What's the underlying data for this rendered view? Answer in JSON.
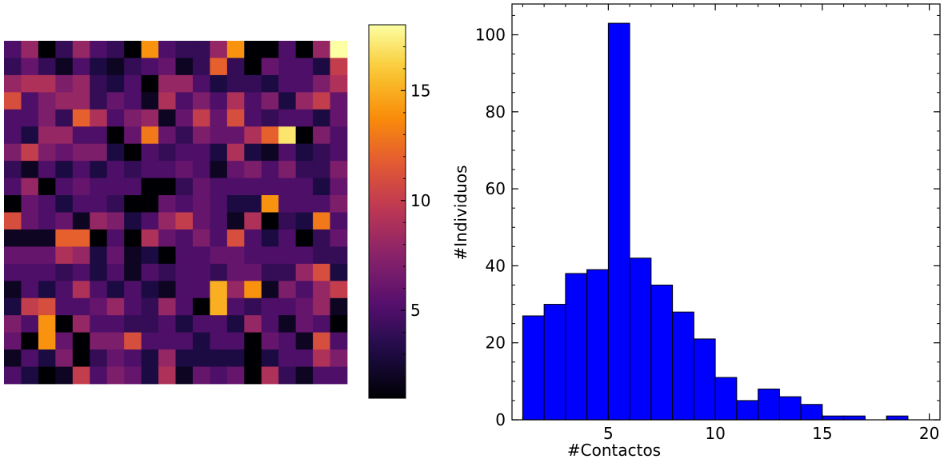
{
  "chart_data": [
    {
      "type": "heatmap",
      "rows": 20,
      "cols": 20,
      "colormap": "inferno",
      "vmin": 1,
      "vmax": 18,
      "colorbar_ticks": [
        5,
        10,
        15
      ],
      "values": [
        [
          5,
          8,
          1,
          4,
          8,
          5,
          4,
          1,
          14,
          5,
          4,
          4,
          8,
          14,
          1,
          1,
          5,
          1,
          8,
          18
        ],
        [
          4,
          6,
          4,
          2,
          5,
          3,
          2,
          4,
          5,
          6,
          2,
          4,
          12,
          4,
          1,
          6,
          5,
          5,
          3,
          10
        ],
        [
          8,
          9,
          9,
          7,
          8,
          4,
          3,
          5,
          1,
          8,
          8,
          5,
          3,
          4,
          4,
          3,
          5,
          5,
          7,
          9
        ],
        [
          11,
          5,
          7,
          8,
          8,
          4,
          6,
          5,
          2,
          9,
          5,
          7,
          5,
          9,
          5,
          7,
          3,
          8,
          10,
          6
        ],
        [
          5,
          5,
          7,
          4,
          12,
          9,
          5,
          7,
          8,
          2,
          6,
          10,
          6,
          11,
          5,
          4,
          5,
          5,
          3,
          6
        ],
        [
          5,
          3,
          8,
          8,
          5,
          5,
          1,
          6,
          13,
          6,
          4,
          7,
          6,
          6,
          9,
          12,
          17,
          1,
          7,
          5
        ],
        [
          7,
          10,
          7,
          6,
          7,
          7,
          3,
          1,
          5,
          4,
          5,
          5,
          3,
          9,
          3,
          2,
          5,
          3,
          4,
          5
        ],
        [
          4,
          2,
          5,
          3,
          5,
          3,
          5,
          4,
          5,
          5,
          6,
          5,
          2,
          6,
          7,
          5,
          7,
          4,
          4,
          7
        ],
        [
          5,
          8,
          1,
          5,
          6,
          5,
          5,
          5,
          1,
          1,
          4,
          6,
          5,
          5,
          5,
          5,
          5,
          5,
          3,
          6
        ],
        [
          1,
          6,
          5,
          3,
          5,
          5,
          4,
          1,
          1,
          6,
          5,
          6,
          5,
          3,
          3,
          14,
          5,
          5,
          5,
          7
        ],
        [
          11,
          6,
          5,
          6,
          2,
          8,
          7,
          3,
          5,
          8,
          10,
          6,
          5,
          2,
          9,
          1,
          4,
          3,
          13,
          5
        ],
        [
          2,
          2,
          2,
          12,
          12,
          1,
          5,
          1,
          9,
          6,
          5,
          7,
          5,
          11,
          5,
          3,
          5,
          1,
          4,
          6
        ],
        [
          6,
          6,
          6,
          9,
          8,
          3,
          6,
          2,
          3,
          1,
          5,
          5,
          6,
          6,
          5,
          5,
          5,
          5,
          4,
          4
        ],
        [
          5,
          5,
          5,
          4,
          5,
          3,
          5,
          2,
          5,
          4,
          5,
          5,
          4,
          6,
          6,
          4,
          4,
          8,
          11,
          3
        ],
        [
          2,
          5,
          3,
          5,
          9,
          5,
          3,
          5,
          3,
          2,
          5,
          5,
          15,
          8,
          14,
          2,
          7,
          5,
          8,
          10
        ],
        [
          3,
          10,
          11,
          5,
          5,
          6,
          8,
          5,
          4,
          8,
          5,
          1,
          15,
          5,
          4,
          5,
          5,
          6,
          8,
          2
        ],
        [
          7,
          5,
          14,
          1,
          8,
          5,
          5,
          4,
          4,
          5,
          3,
          5,
          5,
          3,
          8,
          5,
          2,
          6,
          5,
          1
        ],
        [
          6,
          1,
          14,
          6,
          1,
          7,
          7,
          11,
          5,
          5,
          5,
          3,
          5,
          5,
          1,
          6,
          5,
          2,
          11,
          5
        ],
        [
          2,
          5,
          3,
          7,
          1,
          4,
          6,
          5,
          3,
          8,
          3,
          3,
          3,
          3,
          1,
          3,
          5,
          5,
          9,
          7
        ],
        [
          5,
          3,
          1,
          2,
          10,
          5,
          7,
          6,
          3,
          9,
          2,
          6,
          5,
          6,
          1,
          9,
          4,
          2,
          5,
          5
        ]
      ]
    },
    {
      "type": "bar",
      "xlabel": "#Contactos",
      "ylabel": "#Individuos",
      "xlim": [
        0.5,
        20.5
      ],
      "ylim": [
        0,
        108
      ],
      "xticks": [
        5,
        10,
        15,
        20
      ],
      "yticks": [
        0,
        20,
        40,
        60,
        80,
        100
      ],
      "bar_color": "#0000ff",
      "bins": [
        1,
        2,
        3,
        4,
        5,
        6,
        7,
        8,
        9,
        10,
        11,
        12,
        13,
        14,
        15,
        16,
        17,
        18,
        19,
        20
      ],
      "values": [
        27,
        30,
        38,
        39,
        103,
        42,
        35,
        28,
        21,
        11,
        5,
        8,
        6,
        4,
        1,
        1,
        0,
        1,
        0,
        0
      ]
    }
  ]
}
